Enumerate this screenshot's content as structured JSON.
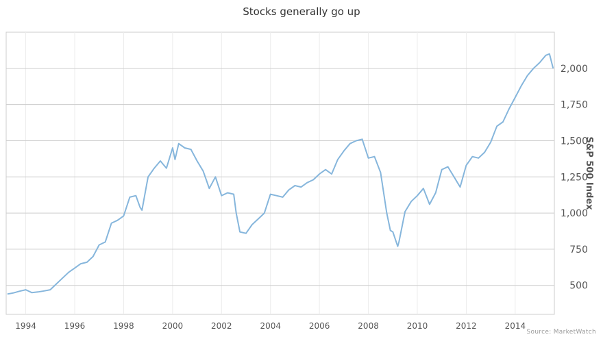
{
  "chart_data": {
    "type": "line",
    "title": "Stocks generally go up",
    "ylabel": "S&P 500 Index",
    "xlabel": "",
    "source": "Source: MarketWatch",
    "xlim": [
      1993.2,
      2015.6
    ],
    "ylim": [
      300,
      2250
    ],
    "x_ticks": [
      1994,
      1996,
      1998,
      2000,
      2002,
      2004,
      2006,
      2008,
      2010,
      2012,
      2014
    ],
    "x_tick_labels": [
      "1994",
      "1996",
      "1998",
      "2000",
      "2002",
      "2004",
      "2006",
      "2008",
      "2010",
      "2012",
      "2014"
    ],
    "y_ticks": [
      500,
      750,
      1000,
      1250,
      1500,
      1750,
      2000
    ],
    "y_tick_labels": [
      "500",
      "750",
      "1,000",
      "1,250",
      "1,500",
      "1,750",
      "2,000"
    ],
    "grid": true,
    "axis_side": "right",
    "series_color": "#86b6dc",
    "series": [
      {
        "name": "",
        "x": [
          1993.25,
          1993.5,
          1993.75,
          1994.0,
          1994.25,
          1994.5,
          1994.75,
          1995.0,
          1995.25,
          1995.5,
          1995.75,
          1996.0,
          1996.25,
          1996.5,
          1996.75,
          1997.0,
          1997.25,
          1997.5,
          1997.75,
          1998.0,
          1998.25,
          1998.5,
          1998.67,
          1998.75,
          1998.9,
          1999.0,
          1999.25,
          1999.5,
          1999.75,
          2000.0,
          2000.1,
          2000.25,
          2000.5,
          2000.75,
          2001.0,
          2001.25,
          2001.5,
          2001.75,
          2002.0,
          2002.25,
          2002.5,
          2002.6,
          2002.75,
          2003.0,
          2003.25,
          2003.5,
          2003.75,
          2004.0,
          2004.25,
          2004.5,
          2004.75,
          2005.0,
          2005.25,
          2005.5,
          2005.75,
          2006.0,
          2006.25,
          2006.5,
          2006.75,
          2007.0,
          2007.25,
          2007.5,
          2007.75,
          2008.0,
          2008.25,
          2008.5,
          2008.75,
          2008.9,
          2009.0,
          2009.2,
          2009.25,
          2009.5,
          2009.75,
          2010.0,
          2010.25,
          2010.5,
          2010.75,
          2011.0,
          2011.25,
          2011.5,
          2011.75,
          2012.0,
          2012.25,
          2012.5,
          2012.75,
          2013.0,
          2013.25,
          2013.5,
          2013.75,
          2014.0,
          2014.25,
          2014.5,
          2014.75,
          2015.0,
          2015.25,
          2015.4,
          2015.55
        ],
        "y": [
          440,
          448,
          460,
          470,
          450,
          455,
          462,
          470,
          510,
          550,
          590,
          620,
          650,
          660,
          700,
          780,
          800,
          930,
          950,
          980,
          1110,
          1120,
          1040,
          1020,
          1160,
          1250,
          1310,
          1360,
          1310,
          1450,
          1370,
          1480,
          1450,
          1440,
          1360,
          1290,
          1170,
          1250,
          1120,
          1140,
          1130,
          1000,
          870,
          860,
          920,
          960,
          1000,
          1130,
          1120,
          1110,
          1160,
          1190,
          1180,
          1210,
          1230,
          1270,
          1300,
          1270,
          1370,
          1430,
          1480,
          1500,
          1510,
          1380,
          1390,
          1280,
          1000,
          880,
          870,
          770,
          800,
          1010,
          1080,
          1120,
          1170,
          1060,
          1140,
          1300,
          1320,
          1250,
          1180,
          1330,
          1390,
          1380,
          1420,
          1490,
          1600,
          1630,
          1720,
          1800,
          1880,
          1950,
          2000,
          2040,
          2090,
          2100,
          2000
        ]
      }
    ]
  }
}
